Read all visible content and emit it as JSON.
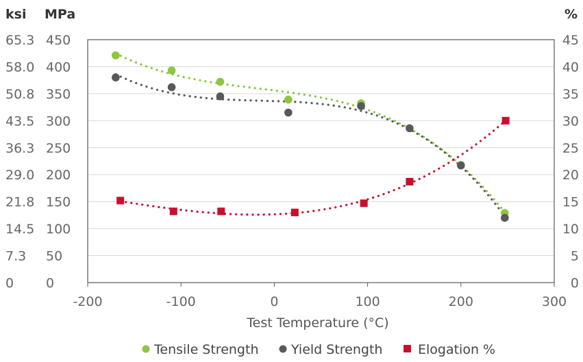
{
  "chart_data": {
    "type": "scatter",
    "title": "",
    "xlabel": "Test Temperature  (°C)",
    "xlim": [
      -200,
      300
    ],
    "x_ticks": [
      "-200",
      "-100",
      "0",
      "100",
      "200",
      "300"
    ],
    "y_left_unit_outer": "ksi",
    "y_left_unit_inner": "MPa",
    "y_right_unit": "%",
    "ylim_mpa": [
      0,
      450
    ],
    "ylim_percent": [
      0,
      45
    ],
    "ksi_ticks": [
      "0",
      "7.3",
      "14.5",
      "21.8",
      "29.0",
      "36.3",
      "43.5",
      "50.8",
      "58.0",
      "65.3"
    ],
    "mpa_ticks": [
      "0",
      "50",
      "100",
      "150",
      "200",
      "250",
      "300",
      "350",
      "400",
      "450"
    ],
    "percent_ticks": [
      "0",
      "5",
      "10",
      "15",
      "20",
      "25",
      "30",
      "35",
      "40",
      "45"
    ],
    "grid": true,
    "legend_position": "bottom",
    "trendlines": "dotted polynomial",
    "series": [
      {
        "name": "Tensile Strength",
        "axis": "left",
        "color": "#8dc63f",
        "marker": "circle",
        "points": [
          [
            -170,
            421
          ],
          [
            -110,
            393
          ],
          [
            -58,
            372
          ],
          [
            15,
            339
          ],
          [
            93,
            332
          ],
          [
            200,
            218
          ],
          [
            247,
            129
          ]
        ]
      },
      {
        "name": "Yield Strength",
        "axis": "left",
        "color": "#58595b",
        "marker": "circle",
        "points": [
          [
            -170,
            380
          ],
          [
            -110,
            362
          ],
          [
            -58,
            345
          ],
          [
            15,
            315
          ],
          [
            93,
            327
          ],
          [
            145,
            286
          ],
          [
            200,
            217
          ],
          [
            247,
            120
          ]
        ]
      },
      {
        "name": "Elogation %",
        "axis": "right",
        "color": "#c8102e",
        "marker": "square",
        "points": [
          [
            -165,
            15.2
          ],
          [
            -108,
            13.2
          ],
          [
            -57,
            13.2
          ],
          [
            22,
            13.0
          ],
          [
            96,
            14.7
          ],
          [
            145,
            18.7
          ],
          [
            248,
            30.0
          ]
        ]
      }
    ]
  }
}
